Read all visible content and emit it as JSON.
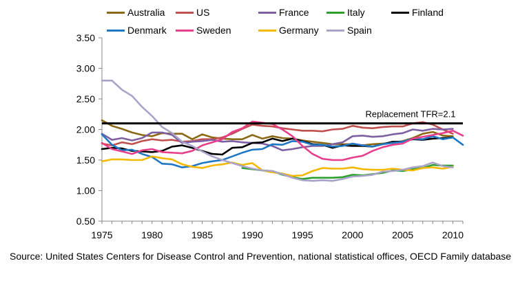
{
  "chart_data": {
    "type": "line",
    "title": "",
    "xlabel": "",
    "ylabel": "",
    "xlim": [
      1975,
      2011
    ],
    "ylim": [
      0.5,
      3.5
    ],
    "x_ticks": [
      1975,
      1980,
      1985,
      1990,
      1995,
      2000,
      2005,
      2010
    ],
    "x_tick_labels": [
      "1975",
      "1980",
      "1985",
      "1990",
      "1995",
      "2000",
      "2005",
      "2010"
    ],
    "y_ticks": [
      0.5,
      1.0,
      1.5,
      2.0,
      2.5,
      3.0,
      3.5
    ],
    "y_tick_labels": [
      "0.50",
      "1.00",
      "1.50",
      "2.00",
      "2.50",
      "3.00",
      "3.50"
    ],
    "grid": "none",
    "legend_position": "top",
    "reference_line": {
      "y": 2.1,
      "label": "Replacement TFR=2.1",
      "color": "#000000"
    },
    "series": [
      {
        "name": "Australia",
        "color": "#8B6914",
        "x": [
          1975,
          1976,
          1977,
          1978,
          1979,
          1980,
          1981,
          1982,
          1983,
          1984,
          1985,
          1986,
          1987,
          1988,
          1989,
          1990,
          1991,
          1992,
          1993,
          1994,
          1995,
          1996,
          1997,
          1998,
          1999,
          2000,
          2001,
          2002,
          2003,
          2004,
          2005,
          2006,
          2007,
          2008,
          2009,
          2010
        ],
        "values": [
          2.15,
          2.06,
          2.01,
          1.95,
          1.91,
          1.89,
          1.94,
          1.93,
          1.93,
          1.84,
          1.92,
          1.87,
          1.85,
          1.84,
          1.84,
          1.91,
          1.85,
          1.89,
          1.86,
          1.85,
          1.82,
          1.8,
          1.78,
          1.76,
          1.76,
          1.76,
          1.74,
          1.76,
          1.77,
          1.78,
          1.81,
          1.86,
          1.93,
          1.96,
          1.9,
          1.89
        ]
      },
      {
        "name": "US",
        "color": "#C0504D",
        "x": [
          1975,
          1976,
          1977,
          1978,
          1979,
          1980,
          1981,
          1982,
          1983,
          1984,
          1985,
          1986,
          1987,
          1988,
          1989,
          1990,
          1991,
          1992,
          1993,
          1994,
          1995,
          1996,
          1997,
          1998,
          1999,
          2000,
          2001,
          2002,
          2003,
          2004,
          2005,
          2006,
          2007,
          2008,
          2009,
          2010
        ],
        "values": [
          1.77,
          1.74,
          1.79,
          1.76,
          1.81,
          1.84,
          1.82,
          1.83,
          1.8,
          1.81,
          1.84,
          1.84,
          1.87,
          1.93,
          2.01,
          2.08,
          2.06,
          2.05,
          2.02,
          2.0,
          1.98,
          1.98,
          1.97,
          2.0,
          2.01,
          2.06,
          2.03,
          2.02,
          2.04,
          2.05,
          2.05,
          2.1,
          2.12,
          2.08,
          2.0,
          1.93
        ]
      },
      {
        "name": "France",
        "color": "#7F5FA3",
        "x": [
          1975,
          1976,
          1977,
          1978,
          1979,
          1980,
          1981,
          1982,
          1983,
          1984,
          1985,
          1986,
          1987,
          1988,
          1989,
          1990,
          1991,
          1992,
          1993,
          1994,
          1995,
          1996,
          1997,
          1998,
          1999,
          2000,
          2001,
          2002,
          2003,
          2004,
          2005,
          2006,
          2007,
          2008,
          2009,
          2010
        ],
        "values": [
          1.93,
          1.83,
          1.86,
          1.82,
          1.86,
          1.95,
          1.95,
          1.91,
          1.78,
          1.8,
          1.81,
          1.83,
          1.8,
          1.81,
          1.79,
          1.78,
          1.77,
          1.73,
          1.66,
          1.68,
          1.71,
          1.73,
          1.73,
          1.76,
          1.79,
          1.89,
          1.9,
          1.88,
          1.89,
          1.92,
          1.94,
          2.0,
          1.98,
          2.01,
          2.0,
          2.01
        ]
      },
      {
        "name": "Italy",
        "color": "#2CA02C",
        "x": [
          1989,
          1990,
          1991,
          1992,
          1993,
          1994,
          1995,
          1996,
          1997,
          1998,
          1999,
          2000,
          2001,
          2002,
          2003,
          2004,
          2005,
          2006,
          2007,
          2008,
          2009,
          2010
        ],
        "values": [
          1.37,
          1.35,
          1.33,
          1.32,
          1.26,
          1.22,
          1.19,
          1.21,
          1.21,
          1.21,
          1.22,
          1.26,
          1.25,
          1.27,
          1.29,
          1.33,
          1.32,
          1.35,
          1.37,
          1.42,
          1.41,
          1.41
        ]
      },
      {
        "name": "Finland",
        "color": "#000000",
        "x": [
          1975,
          1976,
          1977,
          1978,
          1979,
          1980,
          1981,
          1982,
          1983,
          1984,
          1985,
          1986,
          1987,
          1988,
          1989,
          1990,
          1991,
          1992,
          1993,
          1994,
          1995,
          1996,
          1997,
          1998,
          1999,
          2000,
          2001,
          2002,
          2003,
          2004,
          2005,
          2006,
          2007,
          2008,
          2009,
          2010
        ],
        "values": [
          1.68,
          1.7,
          1.69,
          1.65,
          1.64,
          1.63,
          1.65,
          1.72,
          1.74,
          1.7,
          1.65,
          1.6,
          1.59,
          1.7,
          1.71,
          1.78,
          1.79,
          1.85,
          1.81,
          1.85,
          1.81,
          1.76,
          1.75,
          1.7,
          1.74,
          1.73,
          1.73,
          1.72,
          1.76,
          1.8,
          1.8,
          1.84,
          1.83,
          1.85,
          1.86,
          1.87
        ]
      },
      {
        "name": "Denmark",
        "color": "#1F77C4",
        "x": [
          1975,
          1976,
          1977,
          1978,
          1979,
          1980,
          1981,
          1982,
          1983,
          1984,
          1985,
          1986,
          1987,
          1988,
          1989,
          1990,
          1991,
          1992,
          1993,
          1994,
          1995,
          1996,
          1997,
          1998,
          1999,
          2000,
          2001,
          2002,
          2003,
          2004,
          2005,
          2006,
          2007,
          2008,
          2009,
          2010,
          2011
        ],
        "values": [
          1.92,
          1.75,
          1.66,
          1.67,
          1.6,
          1.55,
          1.44,
          1.43,
          1.38,
          1.4,
          1.45,
          1.48,
          1.5,
          1.56,
          1.62,
          1.67,
          1.68,
          1.76,
          1.75,
          1.81,
          1.8,
          1.75,
          1.75,
          1.72,
          1.73,
          1.77,
          1.74,
          1.72,
          1.76,
          1.78,
          1.8,
          1.85,
          1.84,
          1.89,
          1.84,
          1.87,
          1.75
        ]
      },
      {
        "name": "Sweden",
        "color": "#E83E8C",
        "x": [
          1975,
          1976,
          1977,
          1978,
          1979,
          1980,
          1981,
          1982,
          1983,
          1984,
          1985,
          1986,
          1987,
          1988,
          1989,
          1990,
          1991,
          1992,
          1993,
          1994,
          1995,
          1996,
          1997,
          1998,
          1999,
          2000,
          2001,
          2002,
          2003,
          2004,
          2005,
          2006,
          2007,
          2008,
          2009,
          2010,
          2011
        ],
        "values": [
          1.78,
          1.68,
          1.64,
          1.6,
          1.66,
          1.68,
          1.63,
          1.62,
          1.61,
          1.65,
          1.74,
          1.79,
          1.84,
          1.96,
          2.02,
          2.13,
          2.11,
          2.09,
          2.0,
          1.89,
          1.73,
          1.6,
          1.52,
          1.5,
          1.5,
          1.54,
          1.57,
          1.65,
          1.71,
          1.75,
          1.77,
          1.85,
          1.88,
          1.91,
          1.94,
          1.98,
          1.9
        ]
      },
      {
        "name": "Germany",
        "color": "#F5B800",
        "x": [
          1975,
          1976,
          1977,
          1978,
          1979,
          1980,
          1981,
          1982,
          1983,
          1984,
          1985,
          1986,
          1987,
          1988,
          1989,
          1990,
          1991,
          1992,
          1993,
          1994,
          1995,
          1996,
          1997,
          1998,
          1999,
          2000,
          2001,
          2002,
          2003,
          2004,
          2005,
          2006,
          2007,
          2008,
          2009,
          2010
        ],
        "values": [
          1.48,
          1.51,
          1.51,
          1.5,
          1.5,
          1.56,
          1.53,
          1.51,
          1.43,
          1.39,
          1.37,
          1.41,
          1.43,
          1.46,
          1.42,
          1.45,
          1.33,
          1.3,
          1.28,
          1.24,
          1.25,
          1.32,
          1.37,
          1.36,
          1.36,
          1.38,
          1.35,
          1.34,
          1.34,
          1.36,
          1.34,
          1.33,
          1.37,
          1.38,
          1.36,
          1.39
        ]
      },
      {
        "name": "Spain",
        "color": "#A9A3C9",
        "x": [
          1975,
          1976,
          1977,
          1978,
          1979,
          1980,
          1981,
          1982,
          1983,
          1984,
          1985,
          1986,
          1987,
          1988,
          1989,
          1990,
          1991,
          1992,
          1993,
          1994,
          1995,
          1996,
          1997,
          1998,
          1999,
          2000,
          2001,
          2002,
          2003,
          2004,
          2005,
          2006,
          2007,
          2008,
          2009,
          2010
        ],
        "values": [
          2.8,
          2.8,
          2.65,
          2.55,
          2.37,
          2.22,
          2.04,
          1.94,
          1.8,
          1.73,
          1.64,
          1.56,
          1.5,
          1.45,
          1.4,
          1.36,
          1.33,
          1.32,
          1.27,
          1.21,
          1.17,
          1.16,
          1.17,
          1.16,
          1.19,
          1.23,
          1.24,
          1.26,
          1.31,
          1.32,
          1.34,
          1.38,
          1.4,
          1.46,
          1.4,
          1.38
        ]
      }
    ]
  },
  "source_text": "Source: United States Centers for Disease Control and Prevention, national statistical offices, OECD Family database"
}
